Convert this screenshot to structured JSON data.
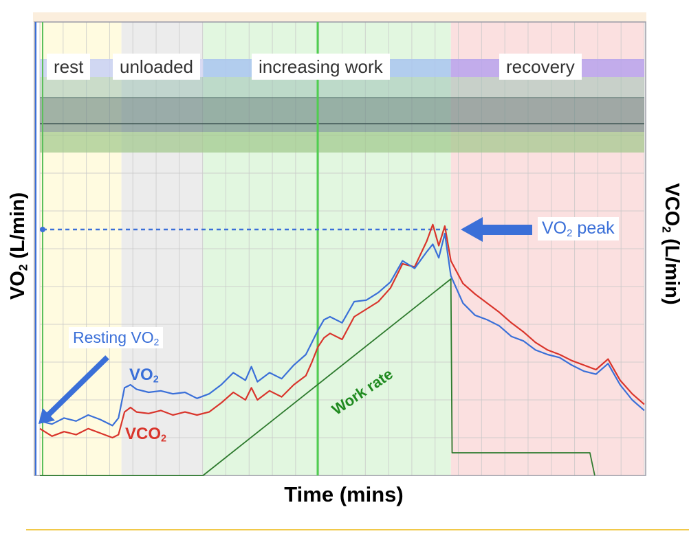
{
  "colors": {
    "vo2": "#3a6fd8",
    "vco2": "#d9342b",
    "work_rate": "#2d7a2d",
    "rest_bg": "#fffbe0",
    "unloaded_bg": "#ececec",
    "work_bg": "#e2f7e0",
    "recovery_bg": "#fbe0e0"
  },
  "axis_labels": {
    "y_left": "VO2 (L/min)",
    "y_right": "VCO2 (L/min)",
    "x": "Time (mins)"
  },
  "phases": [
    "rest",
    "unloaded",
    "increasing work",
    "recovery"
  ],
  "annotations": {
    "resting": "Resting VO2",
    "peak": "VO2 peak",
    "vo2_series": "VO2",
    "vco2_series": "VCO2",
    "work_rate": "Work rate"
  },
  "chart_data": {
    "type": "line",
    "title": "",
    "xlabel": "Time (mins)",
    "ylabel": "VO2 (L/min)",
    "ylabel_right": "VCO2 (L/min)",
    "xlim": [
      0,
      100
    ],
    "ylim": [
      0,
      300
    ],
    "grid": true,
    "phases": [
      {
        "name": "rest",
        "start": 0,
        "end": 13.5
      },
      {
        "name": "unloaded",
        "start": 13.5,
        "end": 27
      },
      {
        "name": "increasing work",
        "start": 27,
        "end": 68
      },
      {
        "name": "recovery",
        "start": 68,
        "end": 100
      }
    ],
    "series": [
      {
        "name": "VO2",
        "x": [
          0,
          2,
          4,
          6,
          8,
          10,
          12,
          13,
          14,
          15,
          16,
          18,
          20,
          22,
          24,
          26,
          28,
          30,
          32,
          34,
          35,
          36,
          38,
          40,
          42,
          44,
          45,
          46,
          47,
          48,
          50,
          52,
          54,
          56,
          58,
          60,
          62,
          64,
          65,
          66,
          67,
          68,
          70,
          72,
          74,
          76,
          78,
          80,
          82,
          84,
          86,
          88,
          90,
          92,
          94,
          96,
          98,
          100
        ],
        "y": [
          36,
          34,
          38,
          36,
          40,
          37,
          33,
          38,
          58,
          60,
          57,
          55,
          56,
          54,
          55,
          51,
          54,
          60,
          68,
          63,
          72,
          62,
          68,
          64,
          73,
          80,
          88,
          96,
          103,
          105,
          101,
          115,
          116,
          121,
          128,
          142,
          137,
          148,
          153,
          144,
          160,
          132,
          114,
          106,
          103,
          99,
          92,
          89,
          83,
          80,
          78,
          73,
          69,
          67,
          74,
          60,
          50,
          43
        ]
      },
      {
        "name": "VCO2",
        "x": [
          0,
          2,
          4,
          6,
          8,
          10,
          12,
          13,
          14,
          15,
          16,
          18,
          20,
          22,
          24,
          26,
          28,
          30,
          32,
          34,
          35,
          36,
          38,
          40,
          42,
          44,
          45,
          46,
          47,
          48,
          50,
          52,
          54,
          56,
          58,
          60,
          62,
          64,
          65,
          66,
          67,
          68,
          70,
          72,
          74,
          76,
          78,
          80,
          82,
          84,
          86,
          88,
          90,
          92,
          94,
          96,
          98,
          100
        ],
        "y": [
          31,
          26,
          29,
          27,
          31,
          28,
          25,
          27,
          42,
          45,
          42,
          41,
          43,
          40,
          42,
          40,
          42,
          48,
          55,
          50,
          58,
          50,
          56,
          52,
          60,
          66,
          75,
          85,
          91,
          94,
          90,
          105,
          110,
          115,
          124,
          140,
          138,
          155,
          166,
          152,
          165,
          142,
          127,
          120,
          114,
          108,
          101,
          95,
          88,
          83,
          80,
          76,
          73,
          70,
          77,
          63,
          54,
          47
        ]
      },
      {
        "name": "Work rate",
        "x": [
          0,
          27,
          68,
          68.2,
          91,
          91.8
        ],
        "y": [
          0,
          0,
          130,
          15,
          15,
          0
        ]
      }
    ]
  }
}
